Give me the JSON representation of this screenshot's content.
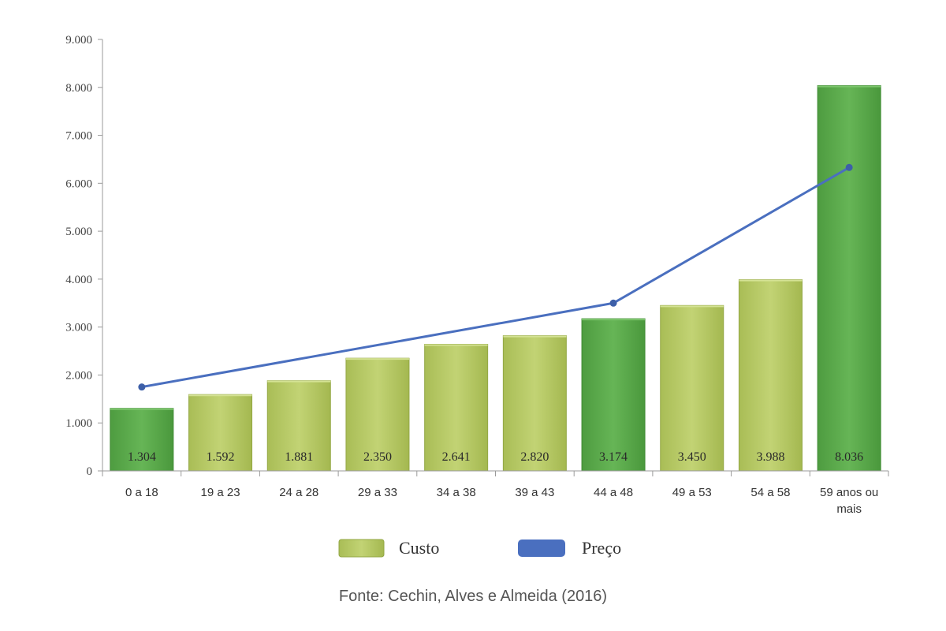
{
  "chart_data": {
    "type": "bar",
    "categories": [
      "0 a 18",
      "19 a 23",
      "24 a 28",
      "29 a 33",
      "34 a 38",
      "39 a 43",
      "44 a 48",
      "49 a 53",
      "54 a 58",
      "59 anos ou mais"
    ],
    "series": [
      {
        "name": "Custo",
        "type": "bar",
        "values": [
          1304,
          1592,
          1881,
          2350,
          2641,
          2820,
          3174,
          3450,
          3988,
          8036
        ],
        "labels": [
          "1.304",
          "1.592",
          "1.881",
          "2.350",
          "2.641",
          "2.820",
          "3.174",
          "3.450",
          "3.988",
          "8.036"
        ],
        "highlighted": [
          "0 a 18",
          "44 a 48",
          "59 anos ou mais"
        ]
      },
      {
        "name": "Preço",
        "type": "line",
        "points": [
          {
            "category": "0 a 18",
            "value": 1750
          },
          {
            "category": "44 a 48",
            "value": 3500
          },
          {
            "category": "59 anos ou mais",
            "value": 6330
          }
        ]
      }
    ],
    "ylim": [
      0,
      9000
    ],
    "yticks": [
      0,
      1000,
      2000,
      3000,
      4000,
      5000,
      6000,
      7000,
      8000,
      9000
    ],
    "ytick_labels": [
      "0",
      "1.000",
      "2.000",
      "3.000",
      "4.000",
      "5.000",
      "6.000",
      "7.000",
      "8.000",
      "9.000"
    ],
    "legend_position": "bottom",
    "grid": false,
    "colors": {
      "bar": "#b5c865",
      "bar_highlight": "#5aa84a",
      "line": "#4a6fbf"
    }
  },
  "source_note": "Fonte:  Cechin, Alves e Almeida (2016)"
}
